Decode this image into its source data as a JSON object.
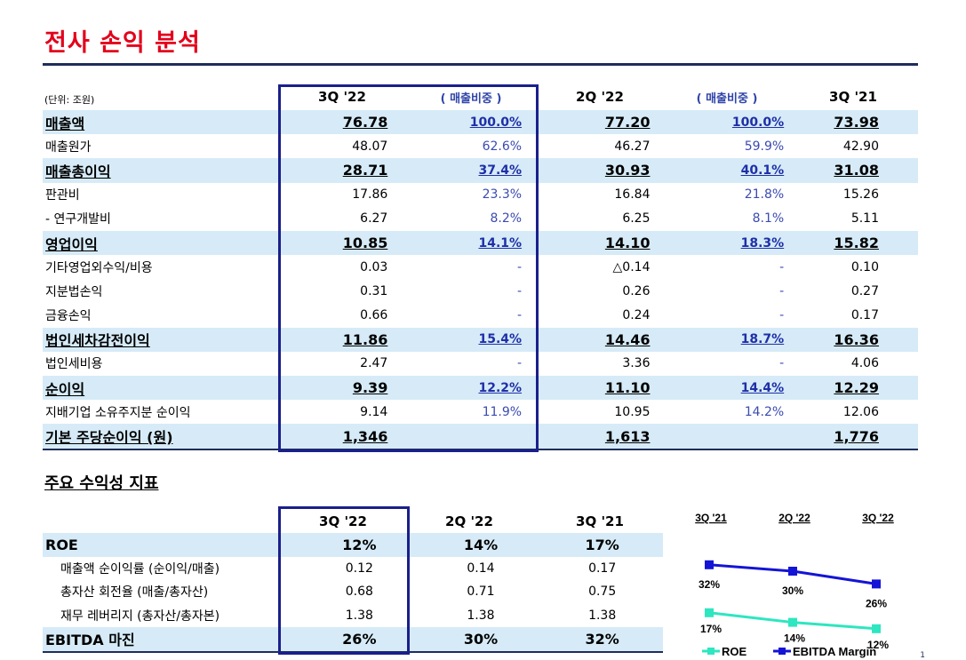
{
  "title": "전사 손익 분석",
  "unit": "(단위: 조원)",
  "pl_headers": [
    "3Q '22",
    "( 매출비중 )",
    "2Q '22",
    "( 매출비중 )",
    "3Q '21"
  ],
  "pl_rows": [
    {
      "label": "매출액",
      "v1": "76.78",
      "r1": "100.0%",
      "v2": "77.20",
      "r2": "100.0%",
      "v3": "73.98",
      "hl": true
    },
    {
      "label": "매출원가",
      "v1": "48.07",
      "r1": "62.6%",
      "v2": "46.27",
      "r2": "59.9%",
      "v3": "42.90",
      "hl": false
    },
    {
      "label": "매출총이익",
      "v1": "28.71",
      "r1": "37.4%",
      "v2": "30.93",
      "r2": "40.1%",
      "v3": "31.08",
      "hl": true
    },
    {
      "label": "판관비",
      "v1": "17.86",
      "r1": "23.3%",
      "v2": "16.84",
      "r2": "21.8%",
      "v3": "15.26",
      "hl": false
    },
    {
      "label": " - 연구개발비",
      "v1": "6.27",
      "r1": "8.2%",
      "v2": "6.25",
      "r2": "8.1%",
      "v3": "5.11",
      "hl": false
    },
    {
      "label": "영업이익",
      "v1": "10.85",
      "r1": "14.1%",
      "v2": "14.10",
      "r2": "18.3%",
      "v3": "15.82",
      "hl": true
    },
    {
      "label": "기타영업외수익/비용",
      "v1": "0.03",
      "r1": "-",
      "v2": "△0.14",
      "r2": "-",
      "v3": "0.10",
      "hl": false
    },
    {
      "label": "지분법손익",
      "v1": "0.31",
      "r1": "-",
      "v2": "0.26",
      "r2": "-",
      "v3": "0.27",
      "hl": false
    },
    {
      "label": "금융손익",
      "v1": "0.66",
      "r1": "-",
      "v2": "0.24",
      "r2": "-",
      "v3": "0.17",
      "hl": false
    },
    {
      "label": "법인세차감전이익",
      "v1": "11.86",
      "r1": "15.4%",
      "v2": "14.46",
      "r2": "18.7%",
      "v3": "16.36",
      "hl": true
    },
    {
      "label": "법인세비용",
      "v1": "2.47",
      "r1": "-",
      "v2": "3.36",
      "r2": "-",
      "v3": "4.06",
      "hl": false
    },
    {
      "label": "순이익",
      "v1": "9.39",
      "r1": "12.2%",
      "v2": "11.10",
      "r2": "14.4%",
      "v3": "12.29",
      "hl": true
    },
    {
      "label": "지배기업 소유주지분 순이익",
      "v1": "9.14",
      "r1": "11.9%",
      "v2": "10.95",
      "r2": "14.2%",
      "v3": "12.06",
      "hl": false
    },
    {
      "label": "기본 주당순이익 (원)",
      "v1": "1,346",
      "r1": "",
      "v2": "1,613",
      "r2": "",
      "v3": "1,776",
      "hl": true
    }
  ],
  "kpi_title": "주요 수익성 지표",
  "kpi_headers": [
    "3Q '22",
    "2Q '22",
    "3Q '21"
  ],
  "kpi_rows": [
    {
      "label": "ROE",
      "c1": "12%",
      "c2": "14%",
      "c3": "17%",
      "hl": true
    },
    {
      "label": "매출액 순이익률 (순이익/매출)",
      "c1": "0.12",
      "c2": "0.14",
      "c3": "0.17",
      "hl": false
    },
    {
      "label": "총자산 회전율 (매출/총자산)",
      "c1": "0.68",
      "c2": "0.71",
      "c3": "0.75",
      "hl": false
    },
    {
      "label": "재무 레버리지 (총자산/총자본)",
      "c1": "1.38",
      "c2": "1.38",
      "c3": "1.38",
      "hl": false
    },
    {
      "label": "EBITDA 마진",
      "c1": "26%",
      "c2": "30%",
      "c3": "32%",
      "hl": true
    }
  ],
  "chart_data": {
    "type": "line",
    "categories": [
      "3Q '21",
      "2Q '22",
      "3Q '22"
    ],
    "series": [
      {
        "name": "ROE",
        "values": [
          17,
          14,
          12
        ],
        "labels": [
          "17%",
          "14%",
          "12%"
        ],
        "color": "#2ee6c0"
      },
      {
        "name": "EBITDA Margin",
        "values": [
          32,
          30,
          26
        ],
        "labels": [
          "32%",
          "30%",
          "26%"
        ],
        "color": "#1414d6"
      }
    ],
    "legend_position": "bottom"
  },
  "page_number": "1"
}
